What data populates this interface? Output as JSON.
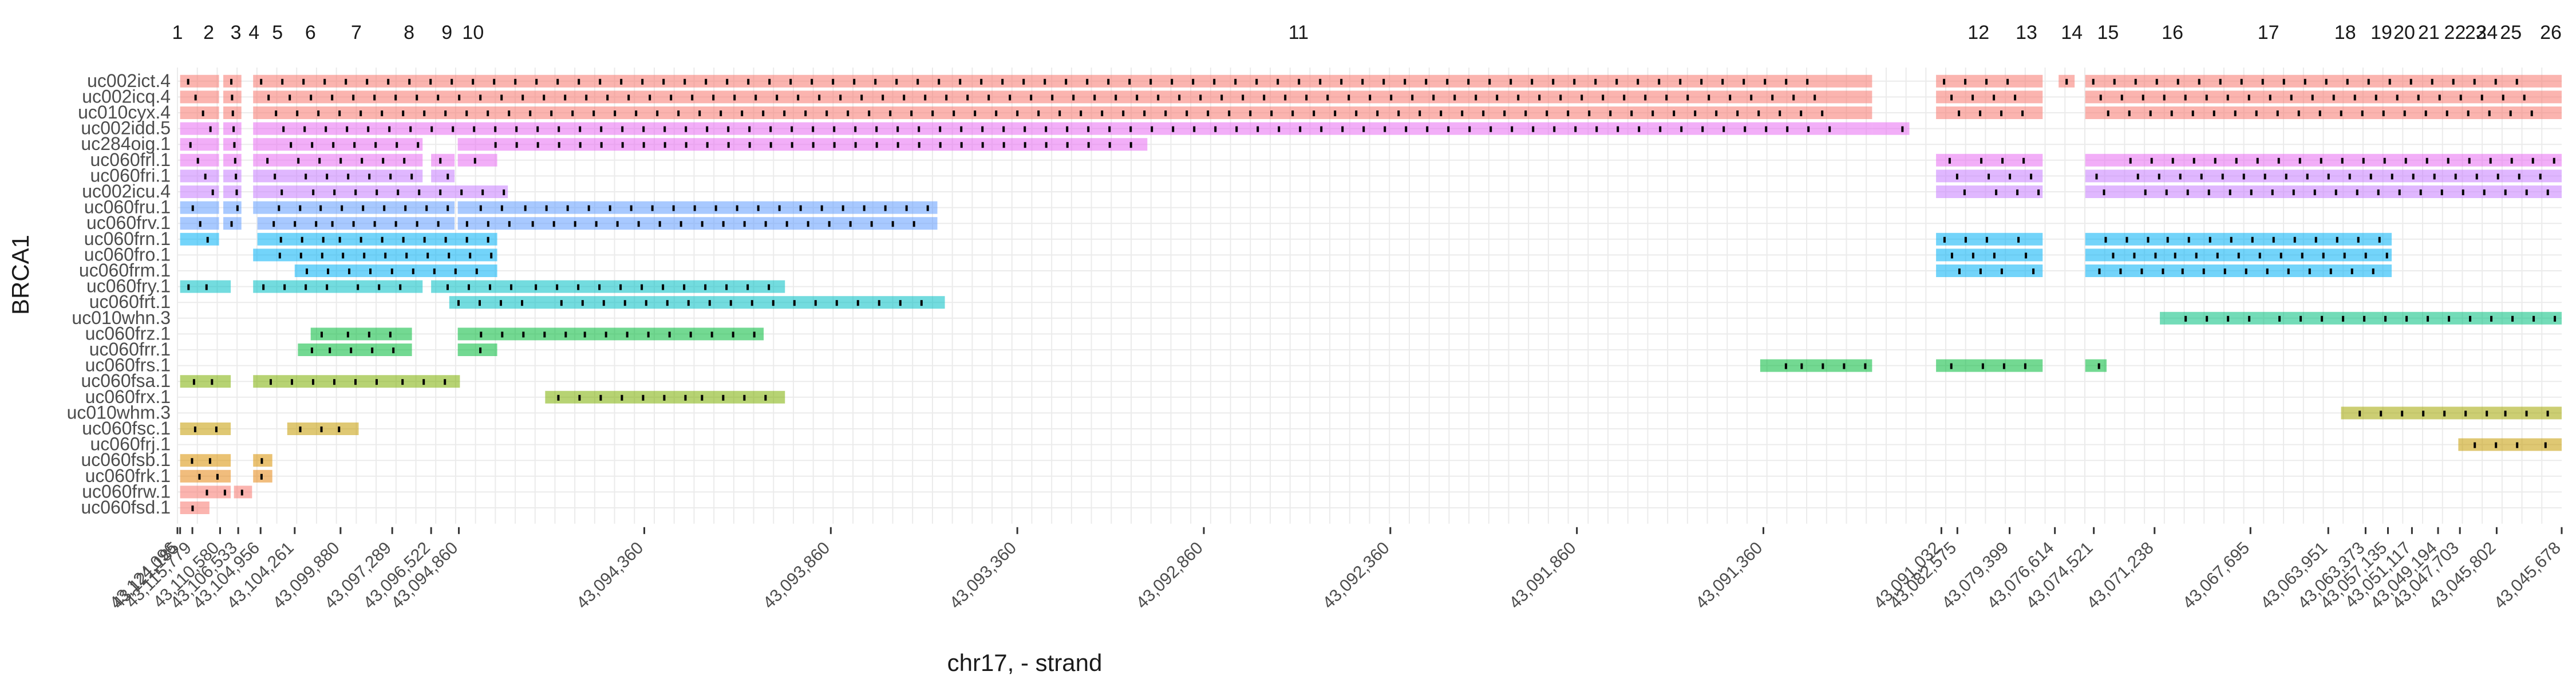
{
  "chart_data": {
    "type": "gene-track",
    "xlabel": "chr17, - strand",
    "ylabel": "BRCA1",
    "exon_labels": [
      "1",
      "2",
      "3",
      "4",
      "5",
      "6",
      "7",
      "8",
      "9",
      "10",
      "11",
      "12",
      "13",
      "14",
      "15",
      "16",
      "17",
      "18",
      "19",
      "20",
      "21",
      "22",
      "23",
      "24",
      "25",
      "26"
    ],
    "exon_positions": [
      0,
      35,
      86,
      120,
      164,
      226,
      312,
      411,
      482,
      531,
      2080,
      3356,
      3446,
      3531,
      3599,
      3720,
      3900,
      4044,
      4112,
      4155,
      4201,
      4250,
      4289,
      4310,
      4355,
      4430
    ],
    "x_ticks": [
      "43,124,096",
      "43,121,185",
      "43,115,779",
      "43,110,580",
      "43,106,533",
      "43,104,956",
      "43,104,261",
      "43,099,880",
      "43,097,289",
      "43,096,522",
      "43,094,860",
      "43,094,360",
      "43,093,860",
      "43,093,360",
      "43,092,860",
      "43,092,360",
      "43,091,860",
      "43,091,360",
      "43,091,032",
      "43,082,575",
      "43,079,399",
      "43,076,614",
      "43,074,521",
      "43,071,238",
      "43,067,695",
      "43,063,951",
      "43,063,373",
      "43,057,135",
      "43,051,117",
      "43,049,194",
      "43,047,703",
      "43,045,802",
      "43,045,678"
    ],
    "x_tick_positions": [
      0,
      5,
      28,
      80,
      114,
      156,
      220,
      306,
      403,
      476,
      528,
      876,
      1226,
      1576,
      1926,
      2276,
      2626,
      2976,
      3310,
      3340,
      3438,
      3523,
      3596,
      3710,
      3890,
      4036,
      4106,
      4148,
      4193,
      4242,
      4283,
      4352,
      4474
    ],
    "x_range": [
      0,
      4474
    ],
    "transcripts": [
      {
        "name": "uc002ict.4",
        "color": "#F8766D",
        "segments": [
          [
            5,
            78
          ],
          [
            86,
            120
          ],
          [
            142,
            3180
          ],
          [
            3300,
            3500
          ],
          [
            3530,
            3560
          ],
          [
            3580,
            4474
          ]
        ]
      },
      {
        "name": "uc002icq.4",
        "color": "#F8766D",
        "segments": [
          [
            5,
            78
          ],
          [
            86,
            120
          ],
          [
            142,
            3180
          ],
          [
            3300,
            3500
          ],
          [
            3580,
            4474
          ]
        ]
      },
      {
        "name": "uc010cyx.4",
        "color": "#F8766D",
        "segments": [
          [
            5,
            78
          ],
          [
            86,
            120
          ],
          [
            142,
            3180
          ],
          [
            3300,
            3500
          ],
          [
            3580,
            4474
          ]
        ]
      },
      {
        "name": "uc002idd.5",
        "color": "#E76BF3",
        "segments": [
          [
            5,
            78
          ],
          [
            86,
            120
          ],
          [
            142,
            3180
          ],
          [
            3180,
            3250
          ]
        ]
      },
      {
        "name": "uc284oig.1",
        "color": "#E76BF3",
        "segments": [
          [
            5,
            78
          ],
          [
            86,
            120
          ],
          [
            142,
            460
          ],
          [
            526,
            1820
          ]
        ]
      },
      {
        "name": "uc060frl.1",
        "color": "#E76BF3",
        "segments": [
          [
            5,
            78
          ],
          [
            86,
            120
          ],
          [
            142,
            460
          ],
          [
            476,
            520
          ],
          [
            526,
            600
          ],
          [
            3300,
            3500
          ],
          [
            3580,
            4474
          ]
        ]
      },
      {
        "name": "uc060fri.1",
        "color": "#C77CFF",
        "segments": [
          [
            5,
            78
          ],
          [
            86,
            120
          ],
          [
            142,
            460
          ],
          [
            476,
            520
          ],
          [
            3300,
            3500
          ],
          [
            3580,
            4474
          ]
        ]
      },
      {
        "name": "uc002icu.4",
        "color": "#C77CFF",
        "segments": [
          [
            5,
            78
          ],
          [
            86,
            120
          ],
          [
            142,
            620
          ],
          [
            3300,
            3500
          ],
          [
            3580,
            4474
          ]
        ]
      },
      {
        "name": "uc060fru.1",
        "color": "#619CFF",
        "segments": [
          [
            5,
            78
          ],
          [
            86,
            120
          ],
          [
            142,
            520
          ],
          [
            526,
            1426
          ]
        ]
      },
      {
        "name": "uc060frv.1",
        "color": "#619CFF",
        "segments": [
          [
            5,
            78
          ],
          [
            86,
            120
          ],
          [
            150,
            520
          ],
          [
            526,
            1426
          ]
        ]
      },
      {
        "name": "uc060frn.1",
        "color": "#00B0F6",
        "segments": [
          [
            5,
            78
          ],
          [
            150,
            600
          ],
          [
            3300,
            3500
          ],
          [
            3580,
            4155
          ]
        ]
      },
      {
        "name": "uc060fro.1",
        "color": "#00B0F6",
        "segments": [
          [
            142,
            600
          ],
          [
            3300,
            3500
          ],
          [
            3580,
            4155
          ]
        ]
      },
      {
        "name": "uc060frm.1",
        "color": "#00B0F6",
        "segments": [
          [
            220,
            600
          ],
          [
            3300,
            3500
          ],
          [
            3580,
            4155
          ]
        ]
      },
      {
        "name": "uc060fry.1",
        "color": "#00BFC4",
        "segments": [
          [
            5,
            100
          ],
          [
            142,
            460
          ],
          [
            476,
            1140
          ]
        ]
      },
      {
        "name": "uc060frt.1",
        "color": "#00BFC4",
        "segments": [
          [
            510,
            1440
          ]
        ]
      },
      {
        "name": "uc010whn.3",
        "color": "#00BF7D",
        "segments": [
          [
            3720,
            4474
          ]
        ]
      },
      {
        "name": "uc060frz.1",
        "color": "#00BA38",
        "segments": [
          [
            250,
            440
          ],
          [
            526,
            1100
          ]
        ]
      },
      {
        "name": "uc060frr.1",
        "color": "#00BA38",
        "segments": [
          [
            226,
            440
          ],
          [
            526,
            600
          ]
        ]
      },
      {
        "name": "uc060frs.1",
        "color": "#00BA38",
        "segments": [
          [
            2970,
            3180
          ],
          [
            3300,
            3500
          ],
          [
            3580,
            3620
          ]
        ]
      },
      {
        "name": "uc060fsa.1",
        "color": "#7CAE00",
        "segments": [
          [
            5,
            100
          ],
          [
            142,
            530
          ]
        ]
      },
      {
        "name": "uc060frx.1",
        "color": "#7CAE00",
        "segments": [
          [
            690,
            1140
          ]
        ]
      },
      {
        "name": "uc010whm.3",
        "color": "#A3A500",
        "segments": [
          [
            4060,
            4474
          ]
        ]
      },
      {
        "name": "uc060fsc.1",
        "color": "#C49A00",
        "segments": [
          [
            5,
            100
          ],
          [
            206,
            340
          ]
        ]
      },
      {
        "name": "uc060frj.1",
        "color": "#C49A00",
        "segments": [
          [
            4280,
            4474
          ]
        ]
      },
      {
        "name": "uc060fsb.1",
        "color": "#D89000",
        "segments": [
          [
            5,
            100
          ],
          [
            142,
            178
          ]
        ]
      },
      {
        "name": "uc060frk.1",
        "color": "#E68613",
        "segments": [
          [
            5,
            100
          ],
          [
            142,
            178
          ]
        ]
      },
      {
        "name": "uc060frw.1",
        "color": "#F8766D",
        "segments": [
          [
            5,
            100
          ],
          [
            106,
            140
          ]
        ]
      },
      {
        "name": "uc060fsd.1",
        "color": "#F8766D",
        "segments": [
          [
            5,
            60
          ]
        ]
      }
    ]
  }
}
